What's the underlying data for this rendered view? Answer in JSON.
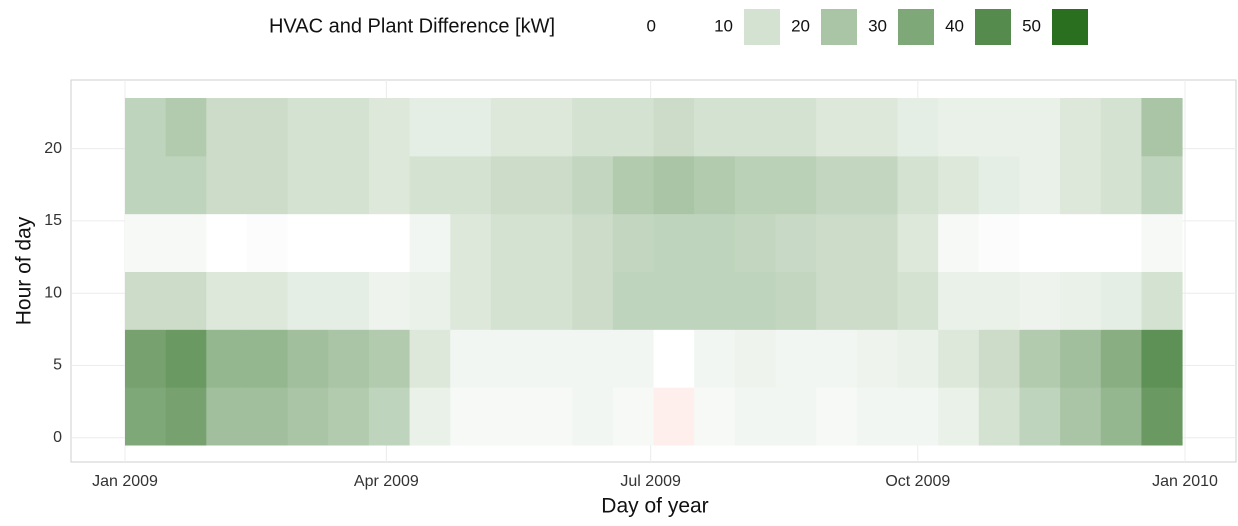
{
  "chart_data": {
    "type": "heatmap",
    "legend_title": "HVAC and Plant Difference [kW]",
    "legend_values": [
      0,
      10,
      20,
      30,
      40,
      50
    ],
    "xlabel": "Day of year",
    "ylabel": "Hour of day",
    "x": [
      0,
      14,
      28,
      42,
      56,
      70,
      84,
      98,
      112,
      126,
      140,
      154,
      168,
      182,
      196,
      210,
      224,
      238,
      252,
      266,
      280,
      294,
      308,
      322,
      336,
      350
    ],
    "x_step": 14,
    "y": [
      0,
      4,
      8,
      12,
      16,
      20
    ],
    "y_step": 4,
    "xlim": [
      0,
      365
    ],
    "ylim": [
      -0.5,
      23.5
    ],
    "xticks": [
      {
        "value": 0,
        "label": "Jan 2009"
      },
      {
        "value": 90,
        "label": "Apr 2009"
      },
      {
        "value": 181,
        "label": "Jul 2009"
      },
      {
        "value": 273,
        "label": "Oct 2009"
      },
      {
        "value": 365,
        "label": "Jan 2010"
      }
    ],
    "yticks": [
      0,
      5,
      10,
      15,
      20
    ],
    "colorscale": {
      "zero": "#ffffff",
      "high": "#2a6e1f",
      "negative": "#ffd6d0",
      "max": 50
    },
    "values": [
      [
        30,
        32,
        22,
        22,
        20,
        18,
        15,
        5,
        2,
        2,
        2,
        3,
        2,
        -2,
        2,
        3,
        3,
        2,
        3,
        3,
        5,
        10,
        15,
        20,
        25,
        35
      ],
      [
        32,
        35,
        25,
        25,
        22,
        20,
        18,
        8,
        3,
        3,
        3,
        3,
        3,
        0,
        3,
        4,
        3,
        3,
        4,
        5,
        8,
        12,
        18,
        22,
        28,
        38
      ],
      [
        12,
        12,
        8,
        8,
        6,
        6,
        4,
        5,
        8,
        10,
        10,
        12,
        15,
        15,
        15,
        15,
        14,
        12,
        12,
        10,
        5,
        5,
        4,
        5,
        6,
        10
      ],
      [
        2,
        2,
        0,
        1,
        0,
        0,
        0,
        3,
        8,
        10,
        10,
        12,
        14,
        15,
        15,
        14,
        13,
        12,
        12,
        8,
        2,
        1,
        0,
        0,
        0,
        2
      ],
      [
        15,
        15,
        12,
        12,
        10,
        10,
        8,
        10,
        10,
        12,
        12,
        14,
        18,
        20,
        18,
        16,
        16,
        14,
        14,
        10,
        8,
        6,
        5,
        8,
        10,
        15
      ],
      [
        15,
        18,
        12,
        12,
        10,
        10,
        8,
        6,
        6,
        8,
        8,
        10,
        10,
        12,
        10,
        10,
        10,
        8,
        8,
        6,
        5,
        5,
        5,
        8,
        10,
        20
      ]
    ]
  }
}
